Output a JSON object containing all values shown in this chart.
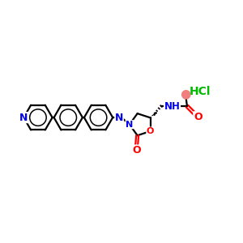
{
  "bg_color": "#ffffff",
  "atom_colors": {
    "N": "#0000ee",
    "O": "#ff0000",
    "C": "#000000",
    "HCl": "#00bb00"
  },
  "figsize": [
    3.0,
    3.0
  ],
  "dpi": 100,
  "xlim": [
    0,
    12
  ],
  "ylim": [
    0,
    10
  ],
  "ring_r": 0.72,
  "lw": 1.6
}
